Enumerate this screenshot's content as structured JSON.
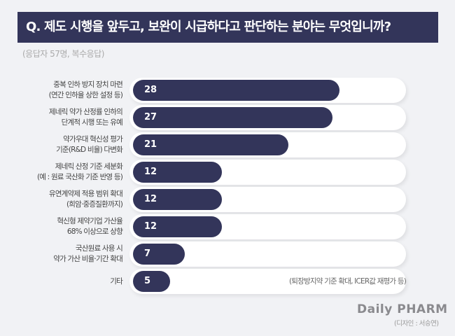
{
  "chart_data": {
    "type": "bar",
    "orientation": "horizontal",
    "title": "Q. 제도 시행을 앞두고, 보완이 시급하다고 판단하는 분야는 무엇입니까?",
    "subtitle": "(응답자 57명, 복수응답)",
    "categories": [
      [
        "중복 인하 방지 장치 마련",
        "(연간 인하율 상한 설정 등)"
      ],
      [
        "제네릭 약가 산정률 인하의",
        "단계적 시행 또는 유예"
      ],
      [
        "약가우대 혁신성 평가",
        "기준(R&D 비율) 다변화"
      ],
      [
        "제네릭 산정 기준 세분화",
        "(예 : 원료 국산화 기준 반영 등)"
      ],
      [
        "유연계약제 적용 범위 확대",
        "(희암·중증질환까지)"
      ],
      [
        "혁신형 제약기업 가산율",
        "68% 이상으로 상향"
      ],
      [
        "국산원료 사용 시",
        "약가 가산 비율·기간 확대"
      ],
      [
        "기타"
      ]
    ],
    "values": [
      28,
      27,
      21,
      12,
      12,
      12,
      7,
      5
    ],
    "notes": [
      "",
      "",
      "",
      "",
      "",
      "",
      "",
      "(퇴장방지약 기준 확대, ICER값 재평가 등)"
    ],
    "xlim": [
      0,
      37
    ],
    "bar_color": "#33355a"
  },
  "footer": {
    "logo": "Daily PHARM",
    "credit": "(디자인 : 서승연)"
  }
}
